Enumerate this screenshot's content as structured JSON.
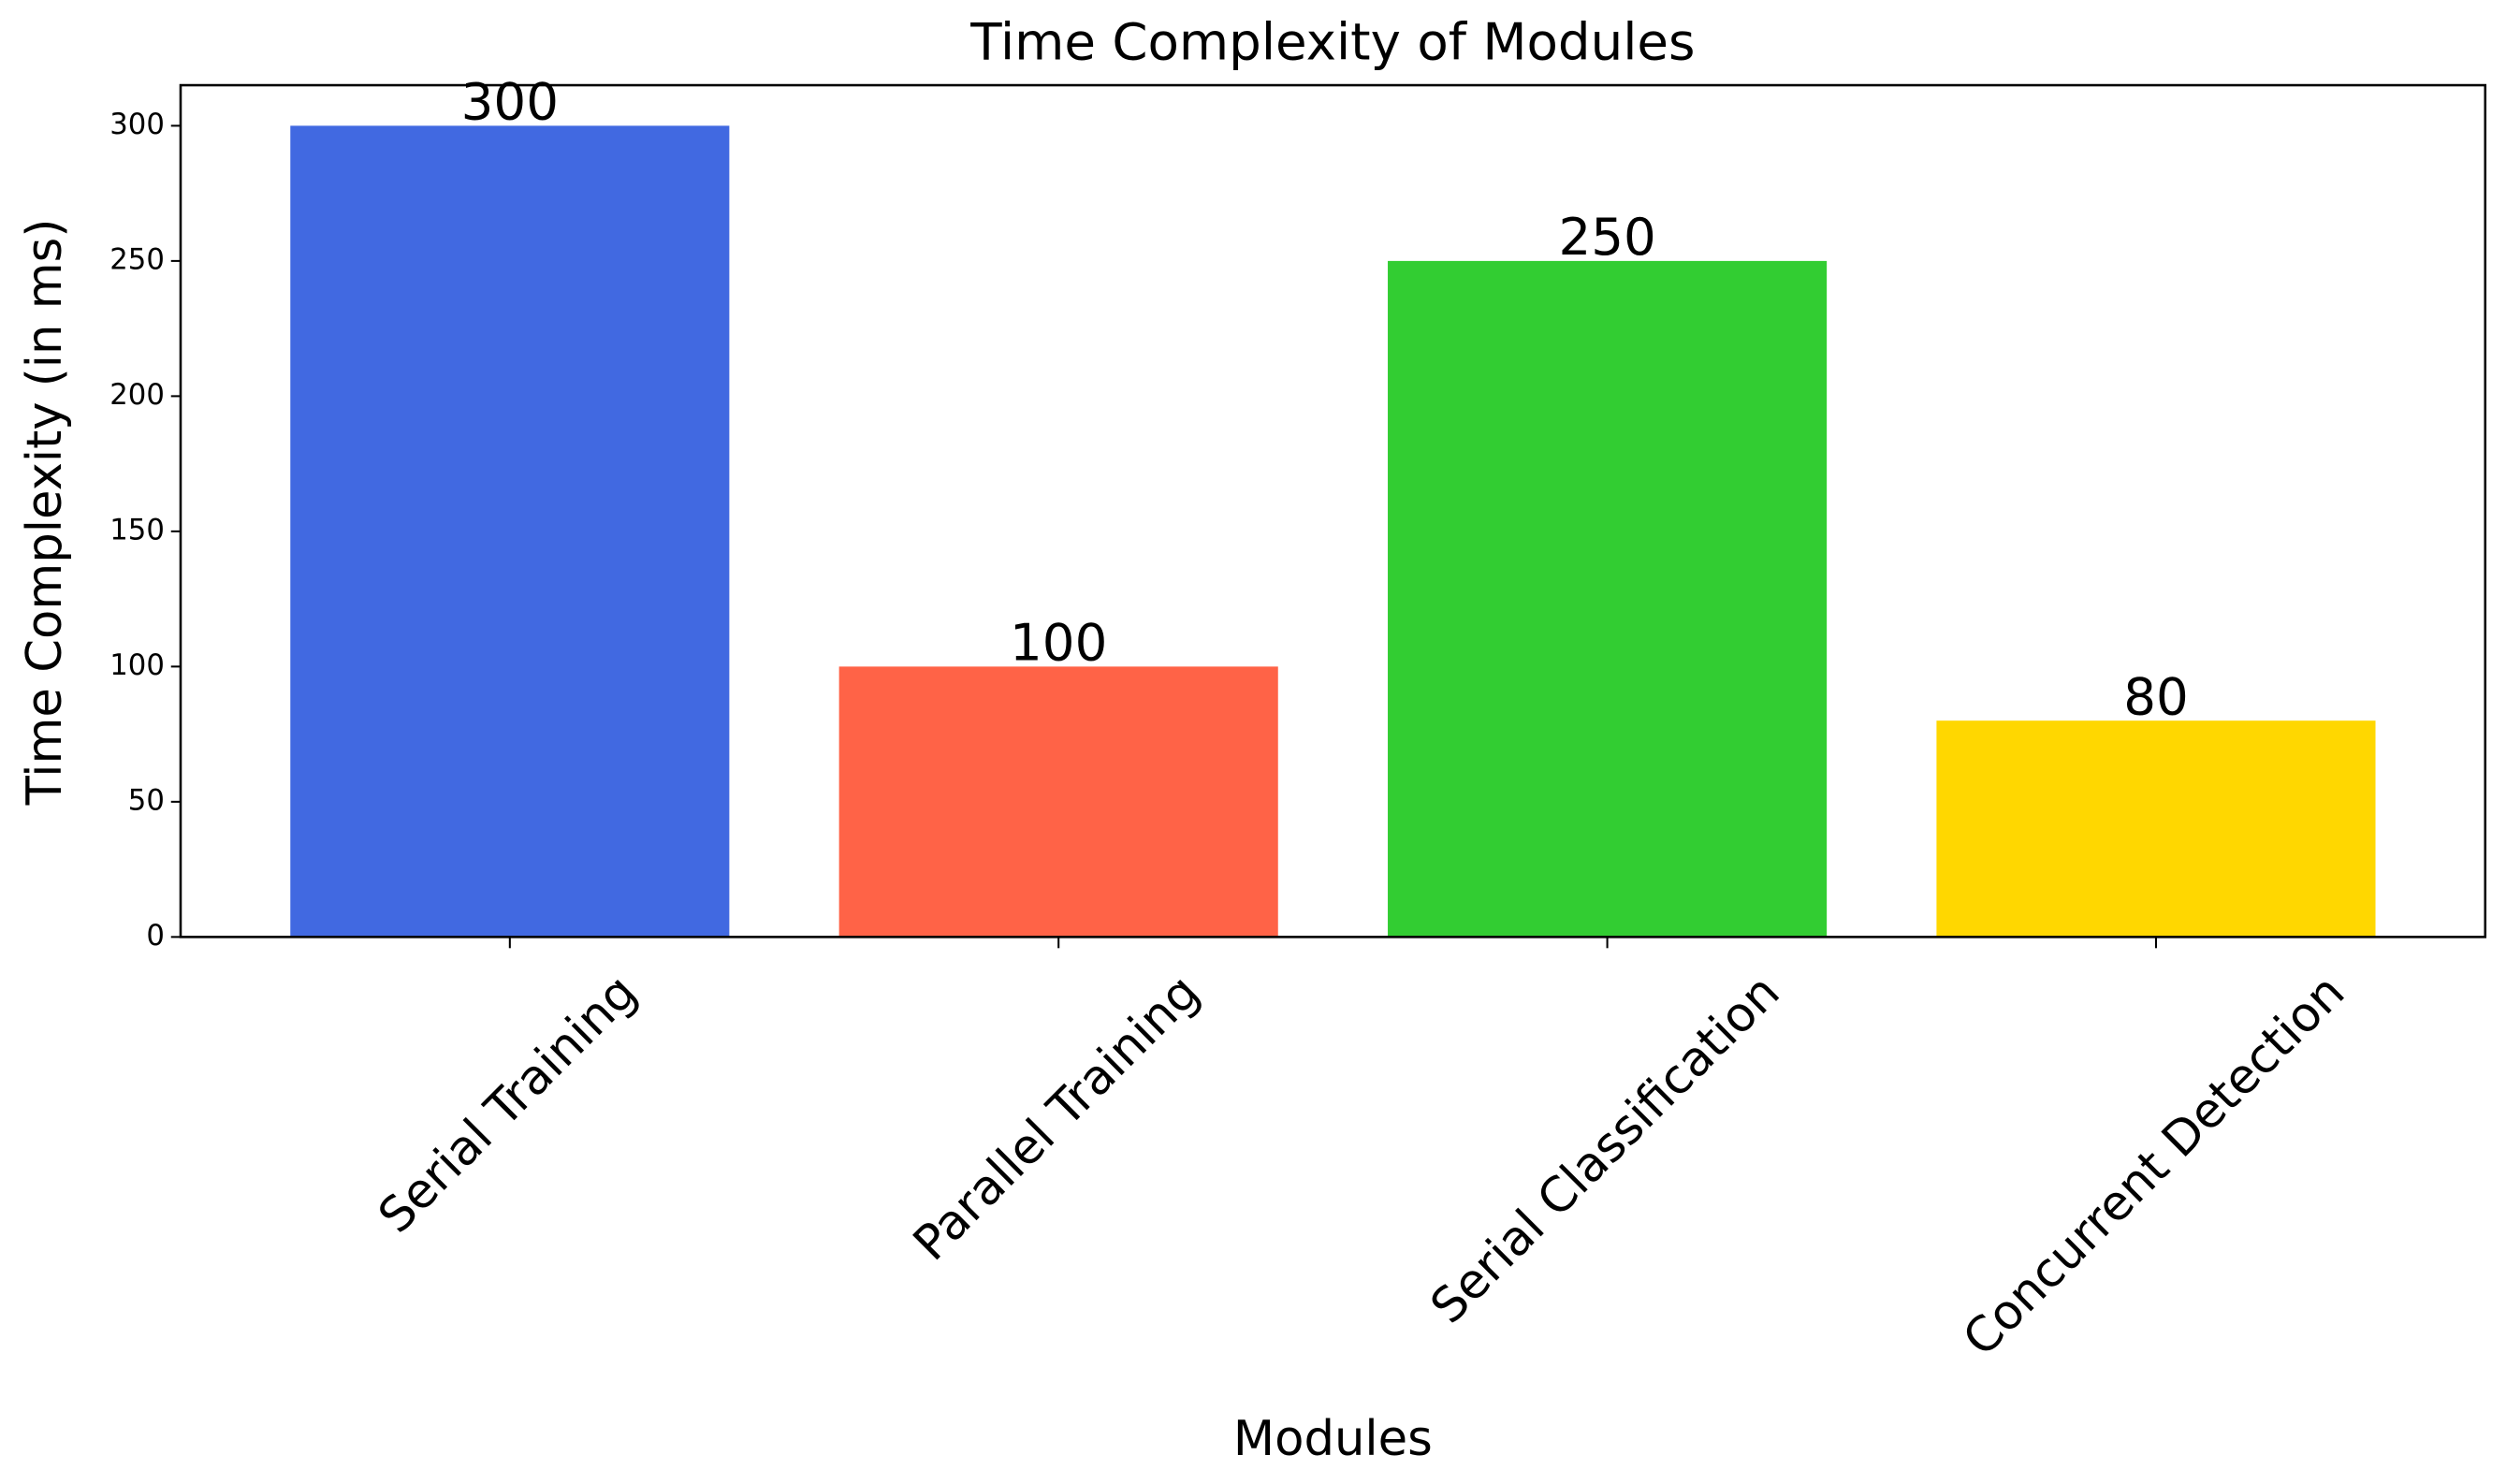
{
  "chart_data": {
    "type": "bar",
    "title": "Time Complexity of Modules",
    "xlabel": "Modules",
    "ylabel": "Time Complexity (in ms)",
    "categories": [
      "Serial Training",
      "Parallel Training",
      "Serial Classification",
      "Concurrent Detection"
    ],
    "values": [
      300,
      100,
      250,
      80
    ],
    "colors": [
      "#4169e1",
      "#ff6347",
      "#32cd32",
      "#ffd700"
    ],
    "ylim": [
      0,
      315
    ],
    "yticks": [
      0,
      50,
      100,
      150,
      200,
      250,
      300
    ],
    "grid": false
  }
}
